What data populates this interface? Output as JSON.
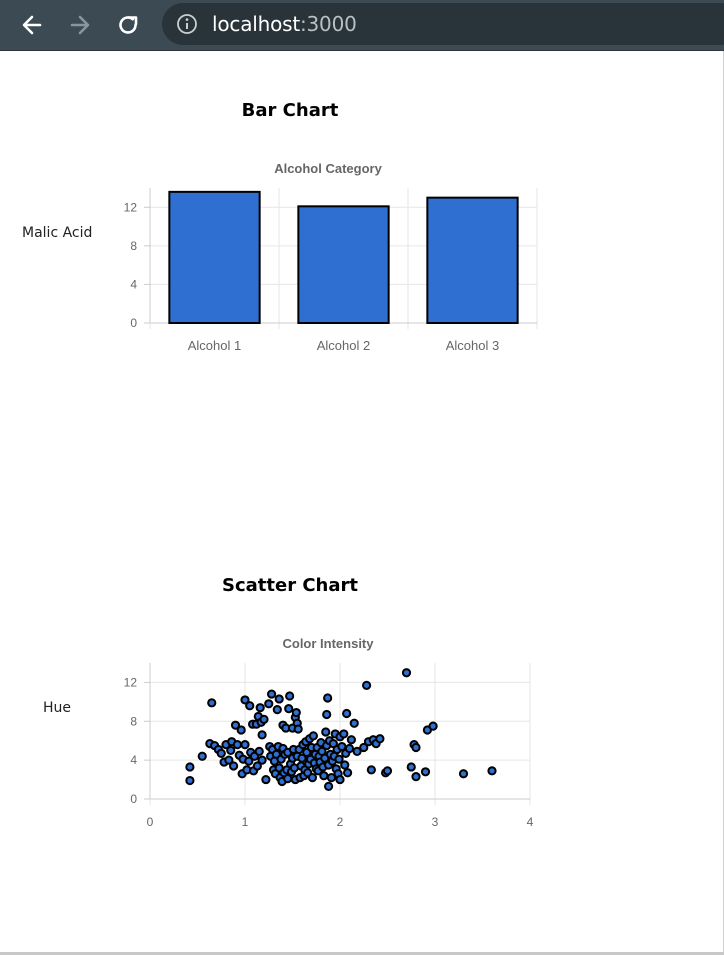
{
  "browser": {
    "url_host": "localhost",
    "url_port": ":3000"
  },
  "charts": {
    "bar_heading": "Bar Chart",
    "bar_side_label": "Malic Acid",
    "scatter_heading": "Scatter Chart",
    "scatter_side_label": "Hue"
  },
  "colors": {
    "bar_fill": "#2f6fd1",
    "point_fill": "#2f6fd1",
    "mark_stroke": "#000000",
    "grid": "#e6e6e6",
    "tick_text": "#666666"
  },
  "chart_data": [
    {
      "type": "bar",
      "title": "Alcohol Category",
      "categories": [
        "Alcohol 1",
        "Alcohol 2",
        "Alcohol 3"
      ],
      "values": [
        13.6,
        12.1,
        13.0
      ],
      "ylim": [
        0,
        14
      ],
      "yticks": [
        0,
        4,
        8,
        12
      ],
      "grid": true,
      "legend": "none"
    },
    {
      "type": "scatter",
      "title": "Color Intensity",
      "xlim": [
        0,
        4
      ],
      "ylim": [
        0,
        14
      ],
      "xticks": [
        0,
        1,
        2,
        3,
        4
      ],
      "yticks": [
        0,
        4,
        8,
        12
      ],
      "grid": true,
      "legend": "none",
      "points": [
        [
          0.42,
          3.3
        ],
        [
          0.42,
          1.9
        ],
        [
          0.55,
          4.4
        ],
        [
          0.63,
          5.7
        ],
        [
          0.65,
          9.9
        ],
        [
          0.68,
          5.5
        ],
        [
          0.72,
          5.1
        ],
        [
          0.75,
          4.7
        ],
        [
          0.78,
          3.8
        ],
        [
          0.8,
          5.6
        ],
        [
          0.83,
          4.0
        ],
        [
          0.85,
          5.0
        ],
        [
          0.86,
          5.9
        ],
        [
          0.88,
          3.4
        ],
        [
          0.9,
          7.6
        ],
        [
          0.92,
          5.6
        ],
        [
          0.94,
          4.5
        ],
        [
          0.96,
          7.1
        ],
        [
          0.97,
          2.6
        ],
        [
          0.98,
          4.1
        ],
        [
          1.0,
          10.2
        ],
        [
          1.0,
          5.6
        ],
        [
          1.02,
          3.0
        ],
        [
          1.04,
          3.9
        ],
        [
          1.05,
          9.6
        ],
        [
          1.06,
          4.8
        ],
        [
          1.08,
          7.7
        ],
        [
          1.09,
          2.9
        ],
        [
          1.1,
          4.4
        ],
        [
          1.12,
          7.7
        ],
        [
          1.13,
          3.4
        ],
        [
          1.14,
          8.5
        ],
        [
          1.15,
          4.9
        ],
        [
          1.16,
          9.4
        ],
        [
          1.17,
          7.9
        ],
        [
          1.18,
          6.6
        ],
        [
          1.18,
          4.0
        ],
        [
          1.2,
          8.2
        ],
        [
          1.22,
          2.0
        ],
        [
          1.25,
          9.8
        ],
        [
          1.26,
          5.4
        ],
        [
          1.27,
          4.4
        ],
        [
          1.28,
          10.8
        ],
        [
          1.29,
          5.1
        ],
        [
          1.3,
          3.0
        ],
        [
          1.31,
          3.9
        ],
        [
          1.32,
          2.6
        ],
        [
          1.33,
          4.6
        ],
        [
          1.34,
          9.2
        ],
        [
          1.35,
          5.4
        ],
        [
          1.36,
          10.3
        ],
        [
          1.36,
          3.2
        ],
        [
          1.37,
          2.2
        ],
        [
          1.38,
          4.1
        ],
        [
          1.39,
          1.8
        ],
        [
          1.4,
          7.6
        ],
        [
          1.4,
          5.2
        ],
        [
          1.41,
          2.7
        ],
        [
          1.42,
          4.6
        ],
        [
          1.43,
          7.3
        ],
        [
          1.44,
          3.0
        ],
        [
          1.45,
          2.1
        ],
        [
          1.45,
          4.8
        ],
        [
          1.46,
          9.3
        ],
        [
          1.47,
          10.6
        ],
        [
          1.48,
          3.6
        ],
        [
          1.49,
          2.8
        ],
        [
          1.5,
          7.3
        ],
        [
          1.5,
          4.2
        ],
        [
          1.51,
          5.1
        ],
        [
          1.52,
          3.2
        ],
        [
          1.53,
          8.4
        ],
        [
          1.53,
          2.0
        ],
        [
          1.54,
          8.9
        ],
        [
          1.55,
          7.8
        ],
        [
          1.55,
          4.4
        ],
        [
          1.56,
          7.2
        ],
        [
          1.57,
          5.1
        ],
        [
          1.58,
          2.2
        ],
        [
          1.59,
          3.4
        ],
        [
          1.6,
          4.2
        ],
        [
          1.61,
          5.6
        ],
        [
          1.62,
          2.4
        ],
        [
          1.63,
          3.0
        ],
        [
          1.64,
          5.9
        ],
        [
          1.65,
          4.8
        ],
        [
          1.66,
          2.7
        ],
        [
          1.67,
          3.6
        ],
        [
          1.68,
          6.2
        ],
        [
          1.69,
          4.1
        ],
        [
          1.7,
          5.3
        ],
        [
          1.71,
          2.2
        ],
        [
          1.72,
          6.5
        ],
        [
          1.73,
          3.7
        ],
        [
          1.74,
          4.6
        ],
        [
          1.75,
          3.1
        ],
        [
          1.76,
          5.3
        ],
        [
          1.77,
          2.9
        ],
        [
          1.78,
          4.4
        ],
        [
          1.79,
          3.8
        ],
        [
          1.8,
          5.8
        ],
        [
          1.81,
          4.9
        ],
        [
          1.82,
          3.3
        ],
        [
          1.83,
          2.4
        ],
        [
          1.84,
          4.2
        ],
        [
          1.85,
          6.9
        ],
        [
          1.86,
          5.5
        ],
        [
          1.86,
          8.7
        ],
        [
          1.87,
          10.4
        ],
        [
          1.88,
          1.3
        ],
        [
          1.88,
          3.5
        ],
        [
          1.89,
          6.0
        ],
        [
          1.9,
          4.6
        ],
        [
          1.91,
          2.2
        ],
        [
          1.92,
          3.9
        ],
        [
          1.93,
          5.7
        ],
        [
          1.94,
          4.4
        ],
        [
          1.95,
          6.7
        ],
        [
          1.96,
          3.1
        ],
        [
          1.97,
          5.1
        ],
        [
          1.98,
          2.6
        ],
        [
          1.99,
          4.1
        ],
        [
          2.0,
          6.4
        ],
        [
          2.0,
          2.0
        ],
        [
          2.02,
          5.4
        ],
        [
          2.04,
          6.7
        ],
        [
          2.05,
          3.5
        ],
        [
          2.06,
          4.7
        ],
        [
          2.07,
          8.8
        ],
        [
          2.08,
          2.7
        ],
        [
          2.1,
          5.2
        ],
        [
          2.12,
          6.1
        ],
        [
          2.15,
          7.8
        ],
        [
          2.18,
          4.9
        ],
        [
          2.25,
          5.3
        ],
        [
          2.28,
          11.7
        ],
        [
          2.3,
          5.9
        ],
        [
          2.33,
          3.0
        ],
        [
          2.35,
          6.1
        ],
        [
          2.38,
          5.7
        ],
        [
          2.42,
          6.2
        ],
        [
          2.48,
          2.7
        ],
        [
          2.5,
          2.9
        ],
        [
          2.7,
          13.0
        ],
        [
          2.75,
          3.3
        ],
        [
          2.78,
          5.6
        ],
        [
          2.8,
          5.3
        ],
        [
          2.8,
          2.3
        ],
        [
          2.9,
          2.8
        ],
        [
          2.92,
          7.1
        ],
        [
          2.98,
          7.5
        ],
        [
          3.3,
          2.6
        ],
        [
          3.6,
          2.9
        ]
      ]
    }
  ]
}
